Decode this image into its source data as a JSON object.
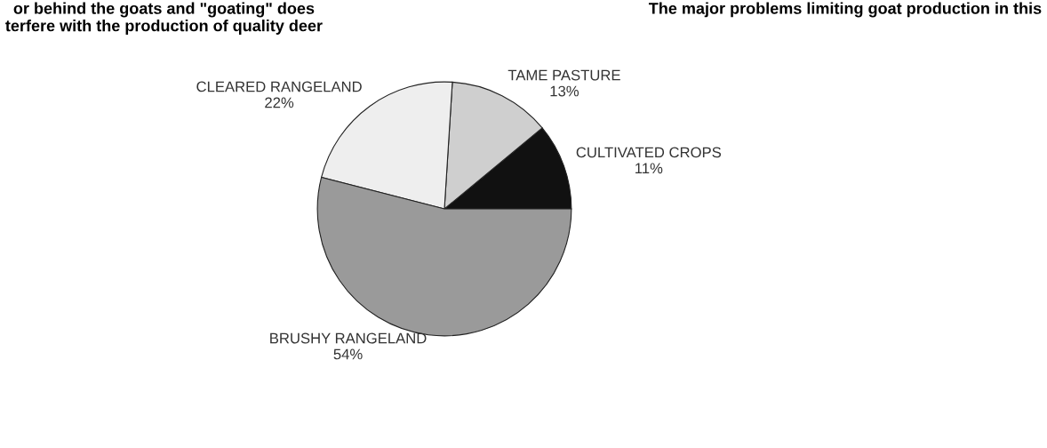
{
  "chart_data": {
    "type": "pie",
    "categories": [
      "CULTIVATED CROPS",
      "TAME PASTURE",
      "CLEARED RANGELAND",
      "BRUSHY RANGELAND"
    ],
    "values": [
      11,
      13,
      22,
      54
    ],
    "value_labels": [
      "11%",
      "13%",
      "22%",
      "54%"
    ],
    "colors": [
      "#111111",
      "#cfcfcf",
      "#eeeeee",
      "#9a9a9a"
    ],
    "annotations": [
      "or behind the goats and \"goating\" does\nterfere with the production of quality deer",
      "The major problems limiting goat production in this"
    ]
  }
}
